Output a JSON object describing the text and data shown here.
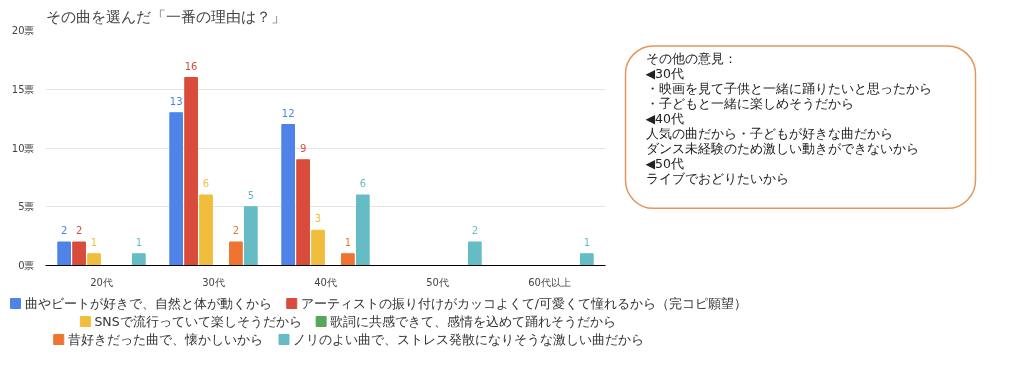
{
  "chart_data": {
    "type": "bar",
    "title": "その曲を選んだ「一番の理由は？」",
    "categories": [
      "20代",
      "30代",
      "40代",
      "50代",
      "60代以上"
    ],
    "series": [
      {
        "name": "曲やビートが好きで、自然と体が動くから",
        "color": "#5083e8",
        "values": [
          2,
          13,
          12,
          0,
          0
        ],
        "value_labels": [
          "2",
          "13",
          "12",
          null,
          null
        ]
      },
      {
        "name": "アーティストの振り付けがカッコよくて/可愛くて憧れるから（完コピ願望）",
        "color": "#d94c3c",
        "values": [
          2,
          16,
          9,
          0,
          0
        ],
        "value_labels": [
          "2",
          "16",
          "9",
          null,
          null
        ]
      },
      {
        "name": "SNSで流行っていて楽しそうだから",
        "color": "#f1bd3c",
        "values": [
          1,
          6,
          3,
          0,
          0
        ],
        "value_labels": [
          "1",
          "6",
          "3",
          null,
          null
        ]
      },
      {
        "name": "歌詞に共感できて、感情を込めて踊れそうだから",
        "color": "#58a65c",
        "values": [
          0,
          0,
          0,
          0,
          0
        ],
        "value_labels": [
          null,
          null,
          null,
          null,
          null
        ]
      },
      {
        "name": "昔好きだった曲で、懐かしいから",
        "color": "#ee7430",
        "values": [
          0,
          2,
          1,
          0,
          0
        ],
        "value_labels": [
          null,
          "2",
          "1",
          null,
          null
        ]
      },
      {
        "name": "ノリのよい曲で、ストレス発散になりそうな激しい曲だから",
        "color": "#66bcc4",
        "values": [
          1,
          5,
          6,
          2,
          1
        ],
        "value_labels": [
          "1",
          "5",
          "6",
          "2",
          "1"
        ]
      }
    ],
    "ylim": [
      0,
      20
    ],
    "yticks": [
      {
        "value": 0,
        "label": "0票"
      },
      {
        "value": 5,
        "label": "5票"
      },
      {
        "value": 10,
        "label": "10票"
      },
      {
        "value": 15,
        "label": "15票"
      },
      {
        "value": 20,
        "label": "20票"
      }
    ],
    "grid": "y",
    "legend": "bottom",
    "annotations": [
      "その他の意見：",
      "◀30代",
      "・映画を見て子供と一緒に踊りたいと思ったから",
      "・子どもと一緒に楽しめそうだから",
      "◀40代",
      "人気の曲だから・子どもが好きな曲だから",
      "ダンス未経験のため激しい動きができないから",
      "◀50代",
      "ライブでおどりたいから"
    ]
  }
}
